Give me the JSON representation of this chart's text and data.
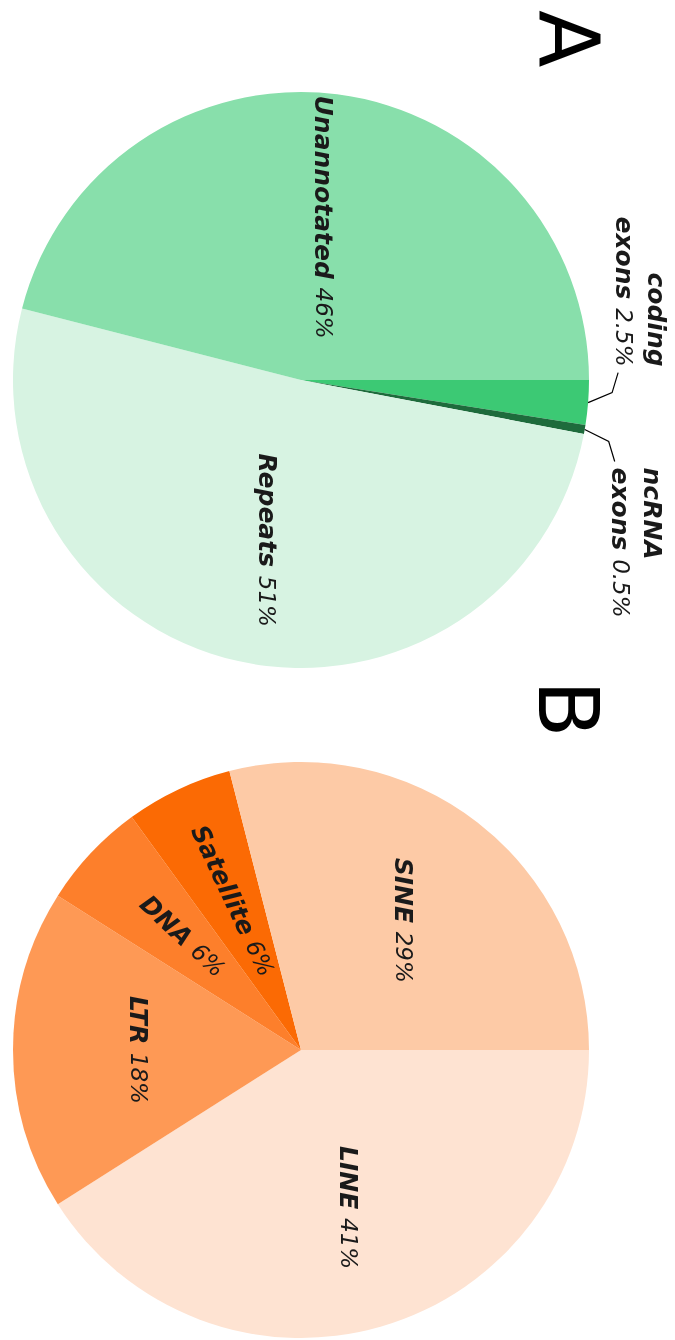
{
  "chart_data": [
    {
      "type": "pie",
      "title": "A",
      "categories": [
        "coding exons",
        "ncRNA exons",
        "Repeats",
        "Unannotated"
      ],
      "values": [
        2.5,
        0.5,
        51,
        46
      ],
      "value_labels": [
        "2.5%",
        "0.5%",
        "51%",
        "46%"
      ],
      "colors": [
        "#3cc974",
        "#1e6b3c",
        "#d7f3e2",
        "#88dfab"
      ]
    },
    {
      "type": "pie",
      "title": "B",
      "categories": [
        "LINE",
        "LTR",
        "DNA",
        "Satellite",
        "SINE"
      ],
      "values": [
        41,
        18,
        6,
        6,
        29
      ],
      "value_labels": [
        "41%",
        "18%",
        "6%",
        "6%",
        "29%"
      ],
      "colors": [
        "#fee3d2",
        "#fe9955",
        "#fd7f2b",
        "#fb6a04",
        "#fdcaa6"
      ]
    }
  ]
}
